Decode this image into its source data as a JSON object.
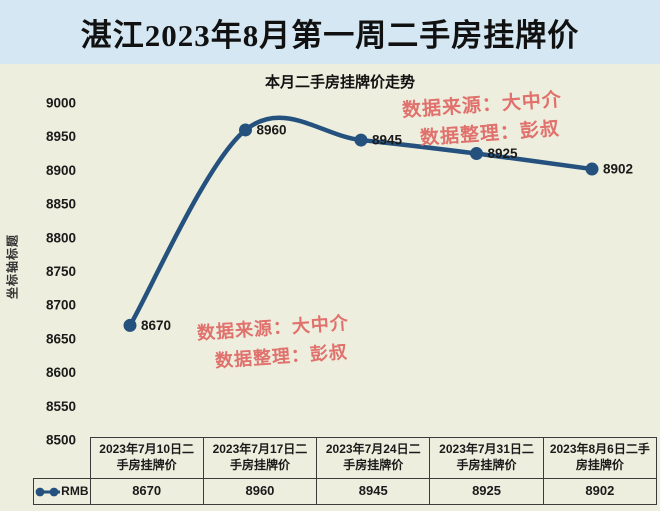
{
  "page_title": "湛江2023年8月第一周二手房挂牌价",
  "chart_data": {
    "type": "line",
    "title": "本月二手房挂牌价走势",
    "ylabel": "坐标轴标题",
    "xlabel": "",
    "categories": [
      "2023年7月10日二手房挂牌价",
      "2023年7月17日二手房挂牌价",
      "2023年7月24日二手房挂牌价",
      "2023年7月31日二手房挂牌价",
      "2023年8月6日二手房挂牌价"
    ],
    "series": [
      {
        "name": "RMB",
        "values": [
          8670,
          8960,
          8945,
          8925,
          8902
        ]
      }
    ],
    "ylim": [
      8500,
      9000
    ],
    "ytick_step": 50,
    "grid": false,
    "data_labels": true,
    "legend_position": "data-table-left",
    "marker": "circle",
    "smooth": true
  },
  "watermarks": {
    "top_right": {
      "line1": "数据来源：大中介",
      "line2": "数据整理：彭叔"
    },
    "center": {
      "line1": "数据来源：大中介",
      "line2": "数据整理：彭叔"
    }
  },
  "colors": {
    "banner_bg": "#d4e7f2",
    "chart_bg": "#edeedd",
    "line": "#24517e",
    "watermark": "#e0716d",
    "text": "#1a1a1a",
    "table_border": "#3b3b3b"
  }
}
